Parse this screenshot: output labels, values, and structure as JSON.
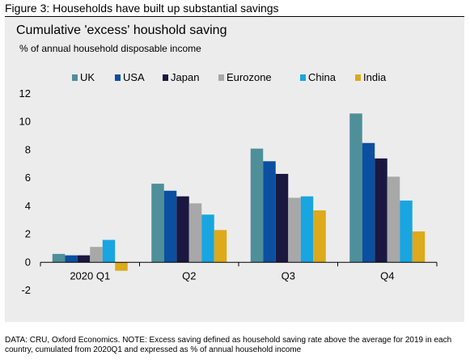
{
  "figure": {
    "title": "Figure 3: Households have built up substantial savings",
    "note": "DATA: CRU, Oxford Economics. NOTE: Excess saving defined as household saving rate above the average for 2019 in each country, cumulated from 2020Q1 and expressed as % of annual household income"
  },
  "chart_data": {
    "type": "bar",
    "title": "Cumulative 'excess' houshold saving",
    "subtitle": "% of annual household disposable income",
    "xlabel": "",
    "ylabel": "",
    "categories": [
      "2020 Q1",
      "Q2",
      "Q3",
      "Q4"
    ],
    "ylim": [
      -2,
      12
    ],
    "yticks": [
      -2,
      0,
      2,
      4,
      6,
      8,
      10,
      12
    ],
    "grid": false,
    "legend": "top",
    "series": [
      {
        "name": "UK",
        "color": "#4f8f9a",
        "values": [
          0.6,
          5.6,
          8.1,
          10.6
        ]
      },
      {
        "name": "USA",
        "color": "#0b4fa0",
        "values": [
          0.5,
          5.1,
          7.2,
          8.5
        ]
      },
      {
        "name": "Japan",
        "color": "#1a1840",
        "values": [
          0.5,
          4.7,
          6.3,
          7.4
        ]
      },
      {
        "name": "Eurozone",
        "color": "#a8a8a8",
        "values": [
          1.1,
          4.2,
          4.6,
          6.1
        ]
      },
      {
        "name": "China",
        "color": "#19a5e0",
        "values": [
          1.6,
          3.4,
          4.7,
          4.4
        ]
      },
      {
        "name": "India",
        "color": "#dcaa1a",
        "values": [
          -0.6,
          2.3,
          3.7,
          2.2
        ]
      }
    ]
  }
}
